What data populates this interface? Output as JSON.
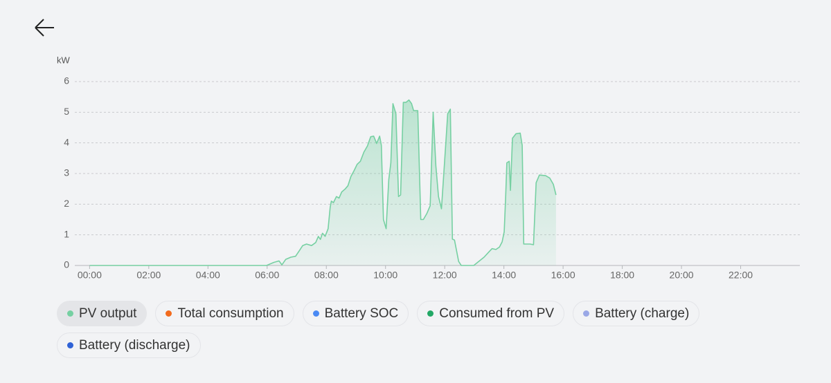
{
  "chart_data": {
    "type": "area",
    "y_label": "kW",
    "xlim": [
      -0.5,
      24
    ],
    "xticks": [
      {
        "value": 0,
        "label": "00:00"
      },
      {
        "value": 2,
        "label": "02:00"
      },
      {
        "value": 4,
        "label": "04:00"
      },
      {
        "value": 6,
        "label": "06:00"
      },
      {
        "value": 8,
        "label": "08:00"
      },
      {
        "value": 10,
        "label": "10:00"
      },
      {
        "value": 12,
        "label": "12:00"
      },
      {
        "value": 14,
        "label": "14:00"
      },
      {
        "value": 16,
        "label": "16:00"
      },
      {
        "value": 18,
        "label": "18:00"
      },
      {
        "value": 20,
        "label": "20:00"
      },
      {
        "value": 22,
        "label": "22:00"
      }
    ],
    "ylim": [
      0,
      6
    ],
    "yticks": [
      0,
      1,
      2,
      3,
      4,
      5,
      6
    ],
    "grid": true,
    "x": [
      0,
      5.98,
      6.22,
      6.4,
      6.5,
      6.63,
      6.8,
      6.96,
      7.1,
      7.2,
      7.33,
      7.5,
      7.64,
      7.73,
      7.8,
      7.87,
      7.96,
      8.06,
      8.13,
      8.17,
      8.24,
      8.34,
      8.43,
      8.52,
      8.64,
      8.73,
      8.83,
      8.94,
      9.04,
      9.15,
      9.27,
      9.39,
      9.5,
      9.6,
      9.7,
      9.8,
      9.86,
      9.93,
      10.02,
      10.11,
      10.18,
      10.25,
      10.35,
      10.44,
      10.51,
      10.6,
      10.69,
      10.79,
      10.88,
      10.95,
      11.09,
      11.19,
      11.28,
      11.4,
      11.51,
      11.61,
      11.7,
      11.79,
      11.89,
      12.03,
      12.1,
      12.19,
      12.26,
      12.33,
      12.47,
      12.56,
      12.98,
      13.33,
      13.5,
      13.6,
      13.73,
      13.85,
      13.94,
      14.01,
      14.06,
      14.1,
      14.18,
      14.22,
      14.29,
      14.41,
      14.55,
      14.62,
      14.67,
      14.88,
      15.0,
      15.09,
      15.2,
      15.41,
      15.55,
      15.67,
      15.76
    ],
    "series": [
      {
        "name": "PV output",
        "color": "#76d0a2",
        "values": [
          0,
          0,
          0.1,
          0.15,
          0.02,
          0.2,
          0.27,
          0.3,
          0.5,
          0.65,
          0.7,
          0.65,
          0.75,
          0.95,
          0.85,
          1.05,
          0.95,
          1.2,
          1.9,
          2.1,
          2.05,
          2.25,
          2.2,
          2.4,
          2.5,
          2.6,
          2.9,
          3.1,
          3.3,
          3.4,
          3.7,
          3.9,
          4.2,
          4.22,
          3.98,
          4.22,
          3.92,
          1.5,
          1.2,
          2.8,
          3.35,
          5.28,
          4.95,
          2.25,
          2.3,
          5.32,
          5.32,
          5.4,
          5.28,
          5.05,
          5.05,
          1.5,
          1.5,
          1.7,
          1.95,
          5.0,
          3.25,
          2.25,
          1.85,
          3.9,
          4.95,
          5.1,
          0.86,
          0.83,
          0.13,
          0,
          0,
          0.27,
          0.45,
          0.55,
          0.52,
          0.6,
          0.77,
          1.1,
          2.25,
          3.35,
          3.4,
          2.45,
          4.15,
          4.3,
          4.32,
          3.92,
          0.7,
          0.7,
          0.68,
          2.7,
          2.95,
          2.93,
          2.85,
          2.65,
          2.3
        ]
      },
      {
        "name": "Total consumption",
        "color": "#f26b1d"
      },
      {
        "name": "Battery SOC",
        "color": "#4a8af4"
      },
      {
        "name": "Consumed from PV",
        "color": "#22a866"
      },
      {
        "name": "Battery (charge)",
        "color": "#9aa8e6"
      },
      {
        "name": "Battery (discharge)",
        "color": "#2f62d6"
      }
    ]
  }
}
